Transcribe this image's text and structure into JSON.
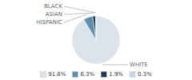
{
  "chart_data": {
    "type": "pie",
    "categories": [
      "WHITE",
      "HISPANIC",
      "ASIAN",
      "BLACK"
    ],
    "values": [
      91.6,
      6.3,
      1.9,
      0.3
    ],
    "value_labels": [
      "91.6%",
      "6.3%",
      "1.9%",
      "0.3%"
    ],
    "colors": [
      "#dce3eb",
      "#5f8faa",
      "#1e3a52",
      "#c8d5de"
    ],
    "legend": "bottom"
  }
}
